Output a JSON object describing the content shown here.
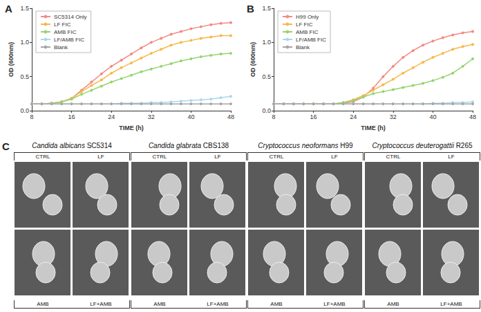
{
  "chart_data": [
    {
      "type": "line",
      "panel": "A",
      "x_label": "TIME (h)",
      "y_label": "OD (600nm)",
      "x": [
        8,
        10,
        12,
        14,
        16,
        18,
        20,
        22,
        24,
        26,
        28,
        30,
        32,
        34,
        36,
        38,
        40,
        42,
        44,
        46,
        48
      ],
      "xlim": [
        8,
        48
      ],
      "xticks": [
        8,
        16,
        24,
        32,
        40,
        48
      ],
      "ylim": [
        0,
        1.5
      ],
      "yticks": [
        {
          "value": 0,
          "label": "0.0"
        },
        0.5,
        {
          "value": 1,
          "label": "1.0"
        },
        1.5
      ],
      "grid": false,
      "legend": "upper left",
      "marker": "circle",
      "line_style": "solid",
      "series": [
        {
          "name": "SC5314 Only",
          "color": "#f28b82",
          "values": [
            0.1,
            0.1,
            0.11,
            0.13,
            0.18,
            0.3,
            0.42,
            0.54,
            0.65,
            0.74,
            0.83,
            0.92,
            1.0,
            1.06,
            1.12,
            1.16,
            1.2,
            1.23,
            1.26,
            1.28,
            1.29
          ]
        },
        {
          "name": "LF FIC",
          "color": "#f7b84b",
          "values": [
            0.1,
            0.1,
            0.11,
            0.13,
            0.18,
            0.28,
            0.37,
            0.45,
            0.55,
            0.63,
            0.7,
            0.77,
            0.84,
            0.9,
            0.96,
            1.0,
            1.03,
            1.06,
            1.08,
            1.1,
            1.1
          ]
        },
        {
          "name": "AMB FIC",
          "color": "#95d46e",
          "values": [
            0.1,
            0.1,
            0.11,
            0.13,
            0.17,
            0.24,
            0.3,
            0.36,
            0.42,
            0.47,
            0.52,
            0.57,
            0.61,
            0.65,
            0.69,
            0.73,
            0.76,
            0.79,
            0.81,
            0.83,
            0.84
          ]
        },
        {
          "name": "LF/AMB FIC",
          "color": "#a9d8ec",
          "values": [
            0.1,
            0.1,
            0.1,
            0.1,
            0.1,
            0.1,
            0.1,
            0.1,
            0.1,
            0.11,
            0.11,
            0.11,
            0.12,
            0.12,
            0.13,
            0.14,
            0.15,
            0.16,
            0.17,
            0.19,
            0.21
          ]
        },
        {
          "name": "Blank",
          "color": "#a6a6a6",
          "values": [
            0.1,
            0.1,
            0.1,
            0.1,
            0.1,
            0.1,
            0.1,
            0.1,
            0.1,
            0.1,
            0.1,
            0.1,
            0.1,
            0.1,
            0.1,
            0.1,
            0.1,
            0.1,
            0.1,
            0.1,
            0.1
          ]
        }
      ]
    },
    {
      "type": "line",
      "panel": "B",
      "x_label": "TIME (h)",
      "y_label": "OD (600nm)",
      "x": [
        8,
        10,
        12,
        14,
        16,
        18,
        20,
        22,
        24,
        26,
        28,
        30,
        32,
        34,
        36,
        38,
        40,
        42,
        44,
        46,
        48
      ],
      "xlim": [
        8,
        48
      ],
      "xticks": [
        8,
        16,
        24,
        32,
        40,
        48
      ],
      "ylim": [
        0,
        1.5
      ],
      "yticks": [
        {
          "value": 0,
          "label": "0.0"
        },
        0.5,
        {
          "value": 1,
          "label": "1.0"
        },
        1.5
      ],
      "grid": false,
      "legend": "upper left",
      "marker": "circle",
      "line_style": "solid",
      "series": [
        {
          "name": "H99 Only",
          "color": "#f28b82",
          "values": [
            0.1,
            0.1,
            0.1,
            0.1,
            0.1,
            0.1,
            0.1,
            0.11,
            0.13,
            0.2,
            0.33,
            0.5,
            0.65,
            0.78,
            0.88,
            0.96,
            1.02,
            1.07,
            1.11,
            1.14,
            1.16
          ]
        },
        {
          "name": "LF FIC",
          "color": "#f7b84b",
          "values": [
            0.1,
            0.1,
            0.1,
            0.1,
            0.1,
            0.1,
            0.1,
            0.12,
            0.16,
            0.22,
            0.3,
            0.38,
            0.46,
            0.55,
            0.63,
            0.71,
            0.78,
            0.84,
            0.9,
            0.94,
            0.97
          ]
        },
        {
          "name": "AMB FIC",
          "color": "#95d46e",
          "values": [
            0.1,
            0.1,
            0.1,
            0.1,
            0.1,
            0.1,
            0.1,
            0.12,
            0.15,
            0.2,
            0.25,
            0.28,
            0.31,
            0.34,
            0.37,
            0.4,
            0.44,
            0.49,
            0.55,
            0.65,
            0.76
          ]
        },
        {
          "name": "LF/AMB FIC",
          "color": "#a9d8ec",
          "values": [
            0.1,
            0.1,
            0.1,
            0.1,
            0.1,
            0.1,
            0.1,
            0.1,
            0.1,
            0.1,
            0.1,
            0.1,
            0.1,
            0.1,
            0.1,
            0.1,
            0.11,
            0.11,
            0.12,
            0.12,
            0.13
          ]
        },
        {
          "name": "Blank",
          "color": "#a6a6a6",
          "values": [
            0.1,
            0.1,
            0.1,
            0.1,
            0.1,
            0.1,
            0.1,
            0.1,
            0.1,
            0.1,
            0.1,
            0.1,
            0.1,
            0.1,
            0.1,
            0.1,
            0.1,
            0.1,
            0.1,
            0.1,
            0.1
          ]
        }
      ]
    }
  ],
  "panel_c": {
    "label": "C",
    "groups": [
      {
        "species": "Candida albicans",
        "strain": "SC5314",
        "conditions": [
          "CTRL",
          "LF",
          "AMB",
          "LF+AMB"
        ]
      },
      {
        "species": "Candida glabrata",
        "strain": "CBS138",
        "conditions": [
          "CTRL",
          "LF",
          "AMB",
          "LF+AMB"
        ]
      },
      {
        "species": "Cryptococcus neoformans",
        "strain": "H99",
        "conditions": [
          "CTRL",
          "LF",
          "AMB",
          "LF+AMB"
        ]
      },
      {
        "species": "Cryptococcus deuterogattii",
        "strain": "R265",
        "conditions": [
          "CTRL",
          "LF",
          "AMB",
          "LF+AMB"
        ]
      }
    ]
  }
}
